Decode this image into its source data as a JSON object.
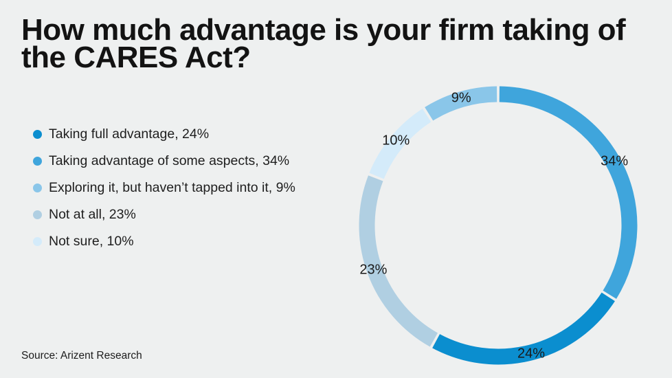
{
  "title": "How much advantage is your firm taking of\nthe CARES Act?",
  "source": "Source: Arizent Research",
  "colors": {
    "background": "#eef0f0",
    "title_text": "#131313",
    "label_text": "#1a1a1a"
  },
  "chart_data": {
    "type": "pie",
    "subtype": "donut-ring",
    "title": "How much advantage is your firm taking of the CARES Act?",
    "unit": "%",
    "segments": [
      {
        "label": "Taking full advantage",
        "value": 24,
        "display_value": "24%",
        "legend_label": "Taking full advantage, 24%",
        "color": "#0b8ecf"
      },
      {
        "label": "Taking advantage of some aspects",
        "value": 34,
        "display_value": "34%",
        "legend_label": "Taking advantage of some aspects, 34%",
        "color": "#3fa5dc"
      },
      {
        "label": "Exploring it, but haven’t tapped into it",
        "value": 9,
        "display_value": "9%",
        "legend_label": "Exploring it, but haven’t tapped into it, 9%",
        "color": "#8ac6e9"
      },
      {
        "label": "Not at all",
        "value": 23,
        "display_value": "23%",
        "legend_label": "Not at all, 23%",
        "color": "#b0cfe2"
      },
      {
        "label": "Not sure",
        "value": 10,
        "display_value": "10%",
        "legend_label": "Not sure, 10%",
        "color": "#d4ebfa"
      }
    ],
    "ring_order": [
      1,
      0,
      3,
      4,
      2
    ],
    "ring_start": "top",
    "ring_direction": "clockwise",
    "legend_position": "left",
    "labels_on_ring": true
  }
}
